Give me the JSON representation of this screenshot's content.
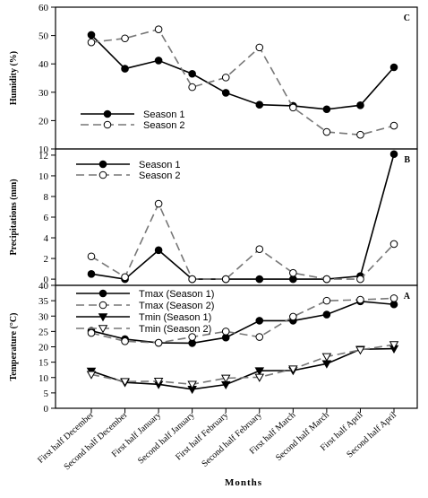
{
  "chart_data": [
    {
      "panel_label": "C",
      "type": "line",
      "ylabel": "Humidity (%)",
      "ylim": [
        10,
        60
      ],
      "yticks": [
        10,
        20,
        30,
        40,
        50,
        60
      ],
      "legend_position": "lower-left",
      "series": [
        {
          "name": "Season 1",
          "style": "solid",
          "marker": "filled-circle",
          "values": [
            50.2,
            38.3,
            41.2,
            36.5,
            29.8,
            25.6,
            25.2,
            24.0,
            25.4,
            38.8
          ]
        },
        {
          "name": "Season 2",
          "style": "dashed",
          "marker": "open-circle",
          "values": [
            47.6,
            49.0,
            52.2,
            31.8,
            35.2,
            45.8,
            24.6,
            16.0,
            15.0,
            18.2
          ]
        }
      ]
    },
    {
      "panel_label": "B",
      "type": "line",
      "ylabel": "Precipitations (mm)",
      "ylim": [
        -0.6,
        12.6
      ],
      "yticks": [
        0,
        2,
        4,
        6,
        8,
        10,
        12
      ],
      "legend_position": "top-left",
      "series": [
        {
          "name": "Season 1",
          "style": "solid",
          "marker": "filled-circle",
          "values": [
            0.5,
            0.0,
            2.8,
            0.0,
            0.0,
            0.0,
            0.0,
            0.0,
            0.3,
            12.1
          ]
        },
        {
          "name": "Season 2",
          "style": "dashed",
          "marker": "open-circle",
          "values": [
            2.2,
            0.2,
            7.3,
            0.0,
            0.0,
            2.9,
            0.6,
            0.0,
            0.0,
            3.4
          ]
        }
      ]
    },
    {
      "panel_label": "A",
      "type": "line",
      "ylabel": "Temperature (°C)",
      "xlabel": "Months",
      "ylim": [
        0,
        40
      ],
      "yticks": [
        0,
        5,
        10,
        15,
        20,
        25,
        30,
        35,
        40
      ],
      "legend_position": "top-left",
      "series": [
        {
          "name": "Tmax (Season 1)",
          "style": "solid",
          "marker": "filled-circle",
          "values": [
            25.2,
            22.5,
            21.3,
            21.2,
            23.0,
            28.5,
            28.5,
            30.5,
            34.8,
            33.8
          ]
        },
        {
          "name": "Tmax (Season 2)",
          "style": "dashed",
          "marker": "open-circle",
          "values": [
            24.5,
            21.8,
            21.3,
            23.2,
            25.0,
            23.2,
            29.8,
            35.0,
            35.3,
            35.8
          ]
        },
        {
          "name": "Tmin (Season 1)",
          "style": "solid",
          "marker": "filled-triangle",
          "values": [
            12.1,
            8.4,
            7.8,
            6.2,
            7.7,
            12.2,
            12.3,
            14.5,
            19.2,
            19.4
          ]
        },
        {
          "name": "Tmin (Season 2)",
          "style": "dashed",
          "marker": "open-triangle",
          "values": [
            11.0,
            8.7,
            8.8,
            7.8,
            9.8,
            10.1,
            12.8,
            16.8,
            19.0,
            20.7
          ]
        }
      ]
    }
  ],
  "categories": [
    "First half December",
    "Second half December",
    "First half January",
    "Second half January",
    "First half February",
    "Second half February",
    "First half March",
    "Second half March",
    "First half April",
    "Second half April"
  ],
  "xlabel": "Months"
}
